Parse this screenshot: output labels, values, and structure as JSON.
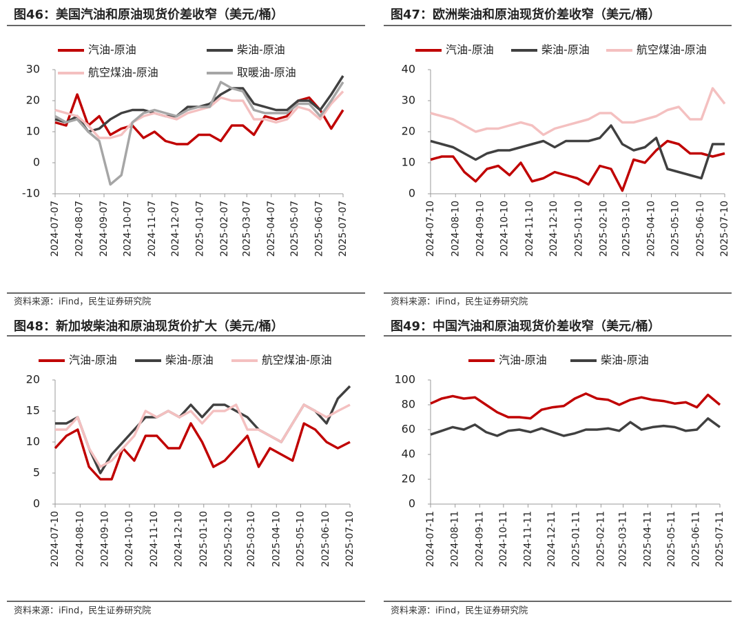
{
  "chart_data": [
    {
      "type": "line",
      "title": "图46：美国汽油和原油现货价差收窄（美元/桶）",
      "source": "资料来源：iFind，民生证券研究院",
      "x": [
        "2024-07-07",
        "2024-07-21",
        "2024-08-04",
        "2024-08-18",
        "2024-09-01",
        "2024-09-15",
        "2024-09-29",
        "2024-10-13",
        "2024-10-27",
        "2024-11-10",
        "2024-11-24",
        "2024-12-08",
        "2024-12-22",
        "2025-01-05",
        "2025-01-19",
        "2025-02-02",
        "2025-02-16",
        "2025-03-02",
        "2025-03-16",
        "2025-03-30",
        "2025-04-13",
        "2025-04-27",
        "2025-05-11",
        "2025-05-25",
        "2025-06-08",
        "2025-06-22",
        "2025-07-07"
      ],
      "xlim": [
        "2024-07-07",
        "2025-07-07"
      ],
      "xticks": [
        "2024-07-07",
        "2024-08-07",
        "2024-09-07",
        "2024-10-07",
        "2024-11-07",
        "2024-12-07",
        "2025-01-07",
        "2025-02-07",
        "2025-03-07",
        "2025-04-07",
        "2025-05-07",
        "2025-06-07",
        "2025-07-07"
      ],
      "ylim": [
        -10,
        30
      ],
      "yticks": [
        -10,
        0,
        10,
        20,
        30
      ],
      "negative_tick_color": "#e00000",
      "series": [
        {
          "name": "汽油-原油",
          "color": "#c00000",
          "values": [
            13,
            12,
            22,
            12,
            15,
            9,
            11,
            12,
            8,
            10,
            7,
            6,
            6,
            9,
            9,
            7,
            12,
            12,
            9,
            15,
            14,
            15,
            20,
            21,
            17,
            11,
            17
          ]
        },
        {
          "name": "柴油-原油",
          "color": "#404040",
          "values": [
            14,
            13,
            15,
            10,
            11,
            14,
            16,
            17,
            17,
            16,
            15,
            15,
            18,
            18,
            19,
            22,
            24,
            24,
            19,
            18,
            17,
            17,
            20,
            20,
            17,
            22,
            28
          ]
        },
        {
          "name": "航空煤油-原油",
          "color": "#f4c0c0",
          "values": [
            17,
            16,
            15,
            12,
            8,
            8,
            9,
            13,
            15,
            16,
            15,
            14,
            16,
            17,
            18,
            21,
            20,
            20,
            14,
            14,
            13,
            14,
            18,
            17,
            14,
            19,
            23
          ]
        },
        {
          "name": "取暖油-原油",
          "color": "#a6a6a6",
          "values": [
            15,
            13,
            14,
            10,
            7,
            -7,
            -4,
            13,
            16,
            17,
            16,
            15,
            17,
            18,
            18,
            26,
            24,
            23,
            17,
            16,
            16,
            16,
            19,
            19,
            15,
            20,
            26
          ]
        }
      ]
    },
    {
      "type": "line",
      "title": "图47：欧洲柴油和原油现货价差收窄（美元/桶）",
      "source": "资料来源：iFind，民生证券研究院",
      "x": [
        "2024-07-10",
        "2024-07-24",
        "2024-08-07",
        "2024-08-21",
        "2024-09-04",
        "2024-09-18",
        "2024-10-02",
        "2024-10-16",
        "2024-10-30",
        "2024-11-13",
        "2024-11-27",
        "2024-12-11",
        "2024-12-25",
        "2025-01-08",
        "2025-01-22",
        "2025-02-05",
        "2025-02-19",
        "2025-03-05",
        "2025-03-19",
        "2025-04-02",
        "2025-04-16",
        "2025-04-30",
        "2025-05-14",
        "2025-05-28",
        "2025-06-11",
        "2025-06-25",
        "2025-07-10"
      ],
      "xlim": [
        "2024-07-10",
        "2025-07-10"
      ],
      "xticks": [
        "2024-07-10",
        "2024-08-10",
        "2024-09-10",
        "2024-10-10",
        "2024-11-10",
        "2024-12-10",
        "2025-01-10",
        "2025-02-10",
        "2025-03-10",
        "2025-04-10",
        "2025-05-10",
        "2025-06-10",
        "2025-07-10"
      ],
      "ylim": [
        0,
        40
      ],
      "yticks": [
        0,
        10,
        20,
        30,
        40
      ],
      "series": [
        {
          "name": "汽油-原油",
          "color": "#c00000",
          "values": [
            11,
            12,
            12,
            7,
            4,
            8,
            9,
            6,
            10,
            4,
            5,
            7,
            6,
            5,
            3,
            9,
            8,
            1,
            11,
            10,
            14,
            17,
            16,
            13,
            13,
            12,
            13
          ]
        },
        {
          "name": "柴油-原油",
          "color": "#404040",
          "values": [
            17,
            16,
            15,
            13,
            11,
            13,
            14,
            14,
            15,
            16,
            17,
            15,
            17,
            17,
            17,
            18,
            22,
            16,
            14,
            15,
            18,
            8,
            7,
            6,
            5,
            16,
            16
          ]
        },
        {
          "name": "航空煤油-原油",
          "color": "#f4c0c0",
          "values": [
            26,
            25,
            24,
            22,
            20,
            21,
            21,
            22,
            23,
            22,
            19,
            21,
            22,
            23,
            24,
            26,
            26,
            23,
            23,
            24,
            25,
            27,
            28,
            24,
            24,
            34,
            29
          ]
        }
      ]
    },
    {
      "type": "line",
      "title": "图48：新加坡柴油和原油现货价扩大（美元/桶）",
      "source": "资料来源：iFind，民生证券研究院",
      "x": [
        "2024-07-10",
        "2024-07-24",
        "2024-08-07",
        "2024-08-21",
        "2024-09-04",
        "2024-09-18",
        "2024-10-02",
        "2024-10-16",
        "2024-10-30",
        "2024-11-13",
        "2024-11-27",
        "2024-12-11",
        "2024-12-25",
        "2025-01-08",
        "2025-01-22",
        "2025-02-05",
        "2025-02-19",
        "2025-03-05",
        "2025-03-19",
        "2025-04-02",
        "2025-04-16",
        "2025-04-30",
        "2025-05-14",
        "2025-05-28",
        "2025-06-11",
        "2025-06-25",
        "2025-07-10"
      ],
      "xlim": [
        "2024-07-10",
        "2025-07-10"
      ],
      "xticks": [
        "2024-07-10",
        "2024-08-10",
        "2024-09-10",
        "2024-10-10",
        "2024-11-10",
        "2024-12-10",
        "2025-01-10",
        "2025-02-10",
        "2025-03-10",
        "2025-04-10",
        "2025-05-10",
        "2025-06-10",
        "2025-07-10"
      ],
      "ylim": [
        0,
        20
      ],
      "yticks": [
        0,
        5,
        10,
        15,
        20
      ],
      "series": [
        {
          "name": "汽油-原油",
          "color": "#c00000",
          "values": [
            9,
            11,
            12,
            6,
            4,
            4,
            9,
            7,
            11,
            11,
            9,
            9,
            13,
            10,
            6,
            7,
            9,
            11,
            6,
            9,
            8,
            7,
            13,
            12,
            10,
            9,
            10
          ]
        },
        {
          "name": "柴油-原油",
          "color": "#404040",
          "values": [
            13,
            13,
            14,
            9,
            5,
            8,
            10,
            12,
            14,
            14,
            15,
            14,
            16,
            14,
            16,
            16,
            15,
            14,
            12,
            11,
            10,
            13,
            16,
            15,
            13,
            17,
            19
          ]
        },
        {
          "name": "航空煤油-原油",
          "color": "#f4c0c0",
          "values": [
            12,
            12,
            14,
            9,
            6,
            7,
            9,
            11,
            15,
            14,
            15,
            14,
            15,
            13,
            15,
            15,
            16,
            12,
            12,
            11,
            10,
            13,
            16,
            15,
            14,
            15,
            16
          ]
        }
      ]
    },
    {
      "type": "line",
      "title": "图49：中国汽油和原油现货价差收窄（美元/桶）",
      "source": "资料来源：iFind，民生证券研究院",
      "x": [
        "2024-07-11",
        "2024-07-25",
        "2024-08-08",
        "2024-08-22",
        "2024-09-05",
        "2024-09-19",
        "2024-10-03",
        "2024-10-17",
        "2024-10-31",
        "2024-11-14",
        "2024-11-28",
        "2024-12-12",
        "2024-12-26",
        "2025-01-09",
        "2025-01-23",
        "2025-02-06",
        "2025-02-20",
        "2025-03-06",
        "2025-03-20",
        "2025-04-03",
        "2025-04-17",
        "2025-05-01",
        "2025-05-15",
        "2025-05-29",
        "2025-06-12",
        "2025-06-26",
        "2025-07-11"
      ],
      "xlim": [
        "2024-07-11",
        "2025-07-11"
      ],
      "xticks": [
        "2024-07-11",
        "2024-08-11",
        "2024-09-11",
        "2024-10-11",
        "2024-11-11",
        "2024-12-11",
        "2025-01-11",
        "2025-02-11",
        "2025-03-11",
        "2025-04-11",
        "2025-05-11",
        "2025-06-11",
        "2025-07-11"
      ],
      "ylim": [
        0,
        100
      ],
      "yticks": [
        0,
        20,
        40,
        60,
        80,
        100
      ],
      "series": [
        {
          "name": "汽油-原油",
          "color": "#c00000",
          "values": [
            81,
            85,
            87,
            85,
            86,
            80,
            74,
            70,
            70,
            69,
            76,
            78,
            79,
            85,
            89,
            85,
            84,
            80,
            84,
            86,
            84,
            83,
            81,
            82,
            78,
            88,
            80
          ]
        },
        {
          "name": "柴油-原油",
          "color": "#404040",
          "values": [
            56,
            59,
            62,
            60,
            64,
            58,
            55,
            59,
            60,
            58,
            61,
            58,
            55,
            57,
            60,
            60,
            61,
            59,
            66,
            60,
            62,
            63,
            62,
            59,
            60,
            69,
            62
          ]
        }
      ]
    }
  ]
}
